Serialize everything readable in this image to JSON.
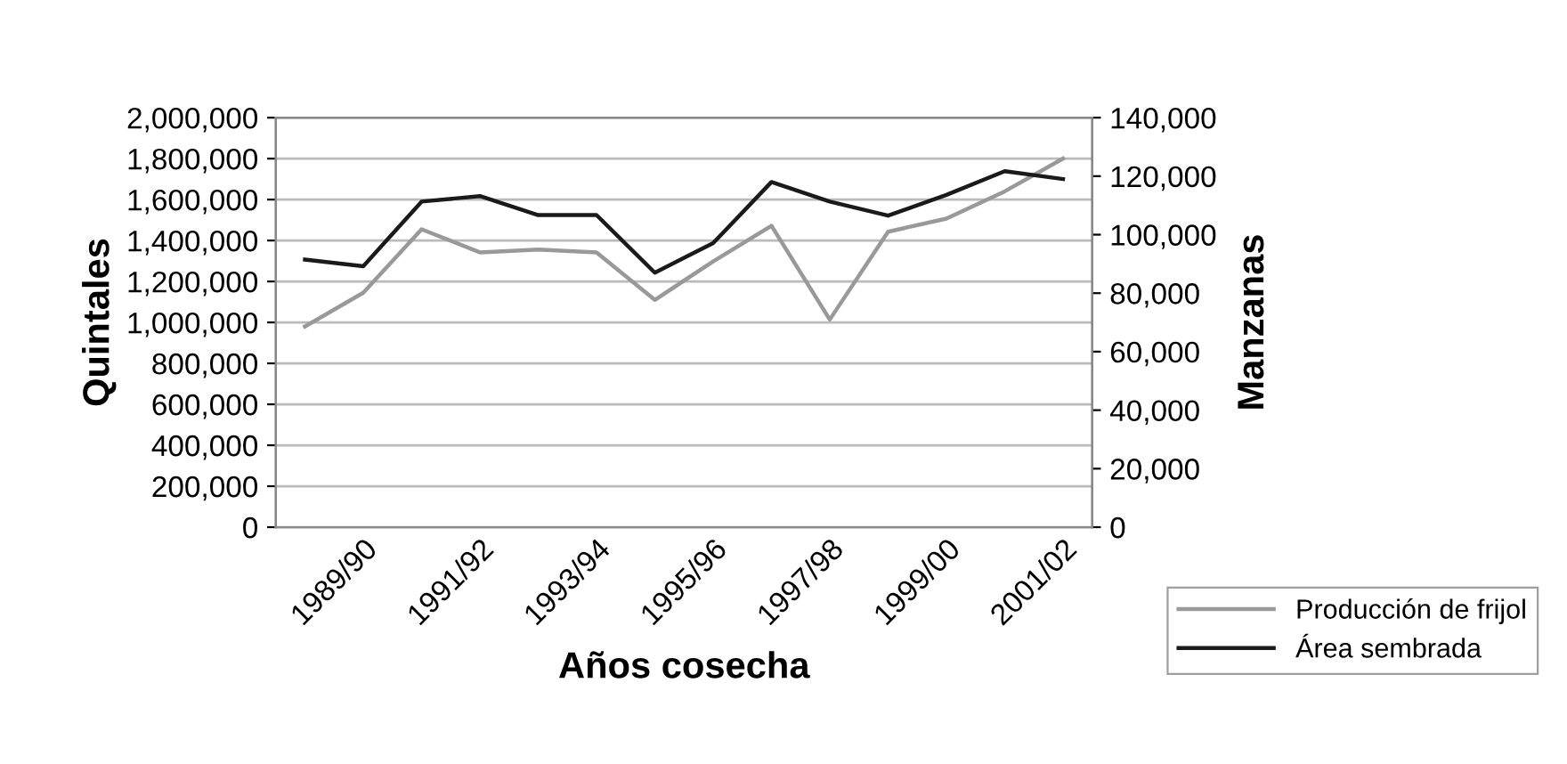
{
  "chart_data": {
    "type": "line",
    "xlabel": "Años cosecha",
    "ylabel": "Quintales",
    "y2label": "Manzanas",
    "categories": [
      null,
      "1989/90",
      null,
      "1991/92",
      null,
      "1993/94",
      null,
      "1995/96",
      null,
      "1997/98",
      null,
      "1999/00",
      null,
      "2001/02"
    ],
    "series": [
      {
        "name": "Producción de frijol",
        "color": "#999999",
        "values": [
          980000,
          1145000,
          1455000,
          1342000,
          1356000,
          1342000,
          1110000,
          1298000,
          1472000,
          1014000,
          1443000,
          1507000,
          1640000,
          1800000
        ]
      },
      {
        "name": "Área sembrada",
        "color": "#1a1a1a",
        "axis": "y2",
        "values": [
          91500,
          89200,
          111300,
          113200,
          106700,
          106700,
          87000,
          97100,
          118000,
          111300,
          106500,
          113600,
          121700,
          119000
        ]
      }
    ],
    "ylim": [
      0,
      2000000
    ],
    "yticks": [
      {
        "value": 0,
        "label": "0"
      },
      {
        "value": 200000,
        "label": "200,000"
      },
      {
        "value": 400000,
        "label": "400,000"
      },
      {
        "value": 600000,
        "label": "600,000"
      },
      {
        "value": 800000,
        "label": "800,000"
      },
      {
        "value": 1000000,
        "label": "1,000,000"
      },
      {
        "value": 1200000,
        "label": "1,200,000"
      },
      {
        "value": 1400000,
        "label": "1,400,000"
      },
      {
        "value": 1600000,
        "label": "1,600,000"
      },
      {
        "value": 1800000,
        "label": "1,800,000"
      },
      {
        "value": 2000000,
        "label": "2,000,000"
      }
    ],
    "y2lim": [
      0,
      140000
    ],
    "y2ticks": [
      {
        "value": 0,
        "label": "0"
      },
      {
        "value": 20000,
        "label": "20,000"
      },
      {
        "value": 40000,
        "label": "40,000"
      },
      {
        "value": 60000,
        "label": "60,000"
      },
      {
        "value": 80000,
        "label": "80,000"
      },
      {
        "value": 100000,
        "label": "100,000"
      },
      {
        "value": 120000,
        "label": "120,000"
      },
      {
        "value": 140000,
        "label": "140,000"
      }
    ],
    "grid": "y",
    "legend": "bottom right",
    "marker": "none",
    "line_style": "solid"
  }
}
